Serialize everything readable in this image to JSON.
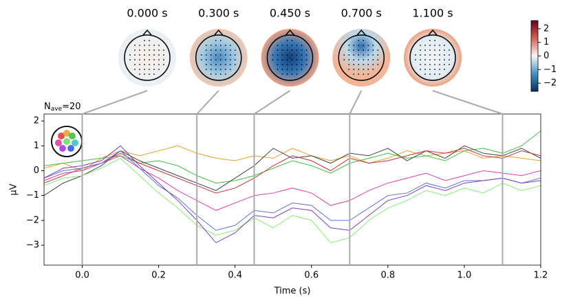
{
  "chart_data": {
    "type": "line",
    "xlabel": "Time (s)",
    "ylabel": "µV",
    "nave_label": {
      "base": "N",
      "sub": "ave",
      "rest": "=20"
    },
    "xlim": [
      -0.1,
      1.2
    ],
    "ylim": [
      -3.8,
      2.28
    ],
    "xticks": [
      {
        "value": 0,
        "label": "0.0"
      },
      {
        "value": 0.2,
        "label": "0.2"
      },
      {
        "value": 0.4,
        "label": "0.4"
      },
      {
        "value": 0.6,
        "label": "0.6"
      },
      {
        "value": 0.8,
        "label": "0.8"
      },
      {
        "value": 1.0,
        "label": "1.0"
      },
      {
        "value": 1.2,
        "label": "1.2"
      }
    ],
    "yticks": [
      {
        "value": -3,
        "label": "−3"
      },
      {
        "value": -2,
        "label": "−2"
      },
      {
        "value": -1,
        "label": "−1"
      },
      0,
      1,
      2
    ],
    "topomaps": [
      {
        "title": "0.000 s",
        "time": 0
      },
      {
        "title": "0.300 s",
        "time": 0.3
      },
      {
        "title": "0.450 s",
        "time": 0.45
      },
      {
        "title": "0.700 s",
        "time": 0.7
      },
      {
        "title": "1.100 s",
        "time": 1.1
      }
    ],
    "colorbar": {
      "clim": [
        -2.6,
        2.6
      ],
      "ticks": [
        {
          "value": -2,
          "label": "−2"
        },
        {
          "value": -1,
          "label": "−1"
        },
        0,
        1,
        2
      ]
    },
    "x": [
      -0.1,
      -0.05,
      0,
      0.05,
      0.1,
      0.15,
      0.2,
      0.25,
      0.3,
      0.35,
      0.4,
      0.45,
      0.5,
      0.55,
      0.6,
      0.65,
      0.7,
      0.75,
      0.8,
      0.85,
      0.9,
      0.95,
      1.0,
      1.05,
      1.1,
      1.15,
      1.2
    ],
    "series": [
      {
        "color": "#e8a020",
        "values": [
          0.1,
          0.3,
          0.0,
          0.5,
          0.8,
          0.6,
          0.8,
          1.0,
          0.7,
          0.5,
          0.4,
          0.6,
          0.5,
          0.9,
          0.6,
          0.4,
          0.6,
          0.3,
          0.5,
          0.8,
          0.6,
          0.7,
          0.8,
          0.5,
          0.6,
          0.5,
          0.4
        ]
      },
      {
        "color": "#3cc43c",
        "values": [
          0.2,
          0.3,
          0.4,
          0.5,
          0.6,
          0.3,
          0.4,
          0.2,
          -0.2,
          -0.5,
          -0.4,
          -0.2,
          0.1,
          0.4,
          0.2,
          -0.1,
          0.3,
          0.5,
          0.7,
          0.5,
          0.6,
          0.4,
          0.8,
          0.9,
          0.7,
          1.0,
          1.6
        ]
      },
      {
        "color": "#404040",
        "values": [
          -1.0,
          -0.5,
          -0.2,
          0.2,
          0.8,
          0.4,
          0.1,
          -0.2,
          -0.5,
          -0.8,
          -0.3,
          0.2,
          0.9,
          0.5,
          0.6,
          0.3,
          0.7,
          0.6,
          0.9,
          0.4,
          0.8,
          0.5,
          1.0,
          0.7,
          0.6,
          0.9,
          0.5
        ]
      },
      {
        "color": "#d03040",
        "values": [
          -0.5,
          -0.2,
          0.1,
          0.3,
          0.7,
          0.3,
          0.0,
          -0.3,
          -0.6,
          -0.9,
          -0.7,
          -0.3,
          0.2,
          0.6,
          0.4,
          0.0,
          0.5,
          0.3,
          0.4,
          0.6,
          0.8,
          0.7,
          0.9,
          0.6,
          0.5,
          0.8,
          0.6
        ]
      },
      {
        "color": "#e040a0",
        "values": [
          -0.4,
          -0.1,
          0.0,
          0.3,
          0.6,
          0.1,
          -0.3,
          -0.8,
          -1.2,
          -1.6,
          -1.3,
          -1.0,
          -0.9,
          -0.7,
          -0.9,
          -1.4,
          -1.2,
          -0.8,
          -0.5,
          -0.3,
          -0.1,
          -0.4,
          -0.2,
          0.0,
          -0.1,
          -0.2,
          0.0
        ]
      },
      {
        "color": "#5a6fe0",
        "values": [
          -0.3,
          0.0,
          0.1,
          0.3,
          0.8,
          0.1,
          -0.6,
          -1.1,
          -1.8,
          -2.4,
          -2.2,
          -1.6,
          -1.7,
          -1.3,
          -1.4,
          -2.0,
          -2.0,
          -1.5,
          -1.0,
          -0.9,
          -0.5,
          -0.7,
          -0.4,
          -0.4,
          -0.3,
          -0.5,
          -0.3
        ]
      },
      {
        "color": "#80f070",
        "values": [
          -0.6,
          -0.3,
          -0.2,
          0.1,
          0.5,
          -0.2,
          -0.9,
          -1.5,
          -2.2,
          -2.6,
          -2.4,
          -1.9,
          -2.3,
          -1.8,
          -2.0,
          -2.9,
          -2.7,
          -2.0,
          -1.5,
          -1.2,
          -0.8,
          -1.0,
          -0.7,
          -0.9,
          -0.5,
          -0.8,
          -0.6
        ]
      },
      {
        "color": "#7b3fbf",
        "values": [
          -0.3,
          0.1,
          0.2,
          0.4,
          1.0,
          0.2,
          -0.5,
          -1.2,
          -2.0,
          -2.9,
          -2.5,
          -1.8,
          -1.9,
          -1.5,
          -1.6,
          -2.3,
          -2.4,
          -1.8,
          -1.2,
          -1.0,
          -0.6,
          -0.8,
          -0.5,
          -0.4,
          -0.3,
          -0.5,
          -0.4
        ]
      }
    ]
  }
}
